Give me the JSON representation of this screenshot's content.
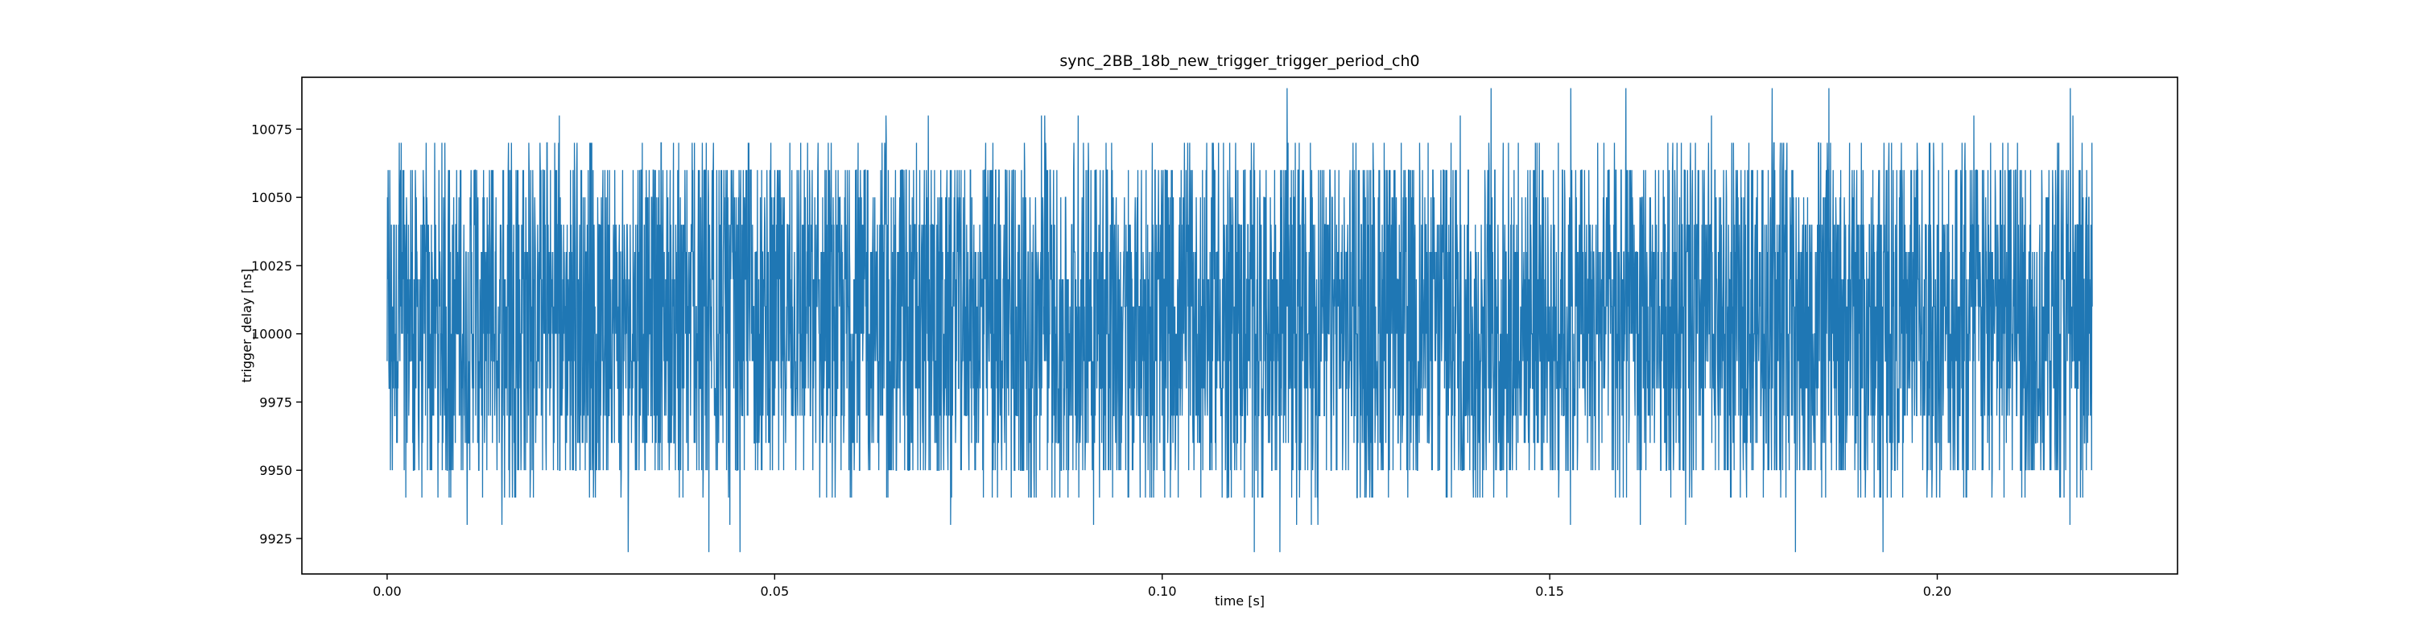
{
  "chart_data": {
    "type": "line",
    "title": "sync_2BB_18b_new_trigger_trigger_period_ch0",
    "xlabel": "time [s]",
    "ylabel": "trigger_delay [ns]",
    "xlim": [
      -0.011,
      0.231
    ],
    "ylim": [
      9912,
      10094
    ],
    "x_ticks": [
      0.0,
      0.05,
      0.1,
      0.15,
      0.2
    ],
    "x_tick_labels": [
      "0.00",
      "0.05",
      "0.10",
      "0.15",
      "0.20"
    ],
    "y_ticks": [
      9925,
      9950,
      9975,
      10000,
      10025,
      10050,
      10075
    ],
    "y_tick_labels": [
      "9925",
      "9950",
      "9975",
      "10000",
      "10025",
      "10050",
      "10075"
    ],
    "grid": false,
    "series": [
      {
        "color": "#1f77b4",
        "x_range": [
          0.0,
          0.22
        ],
        "sample_interval": 1e-05,
        "dense_band": [
          9960,
          10050
        ],
        "frequent_values": [
          9950,
          10060
        ],
        "occasional_values": [
          9940,
          10070
        ],
        "rare_values": [
          9920,
          9930,
          10080,
          10090
        ]
      }
    ]
  }
}
